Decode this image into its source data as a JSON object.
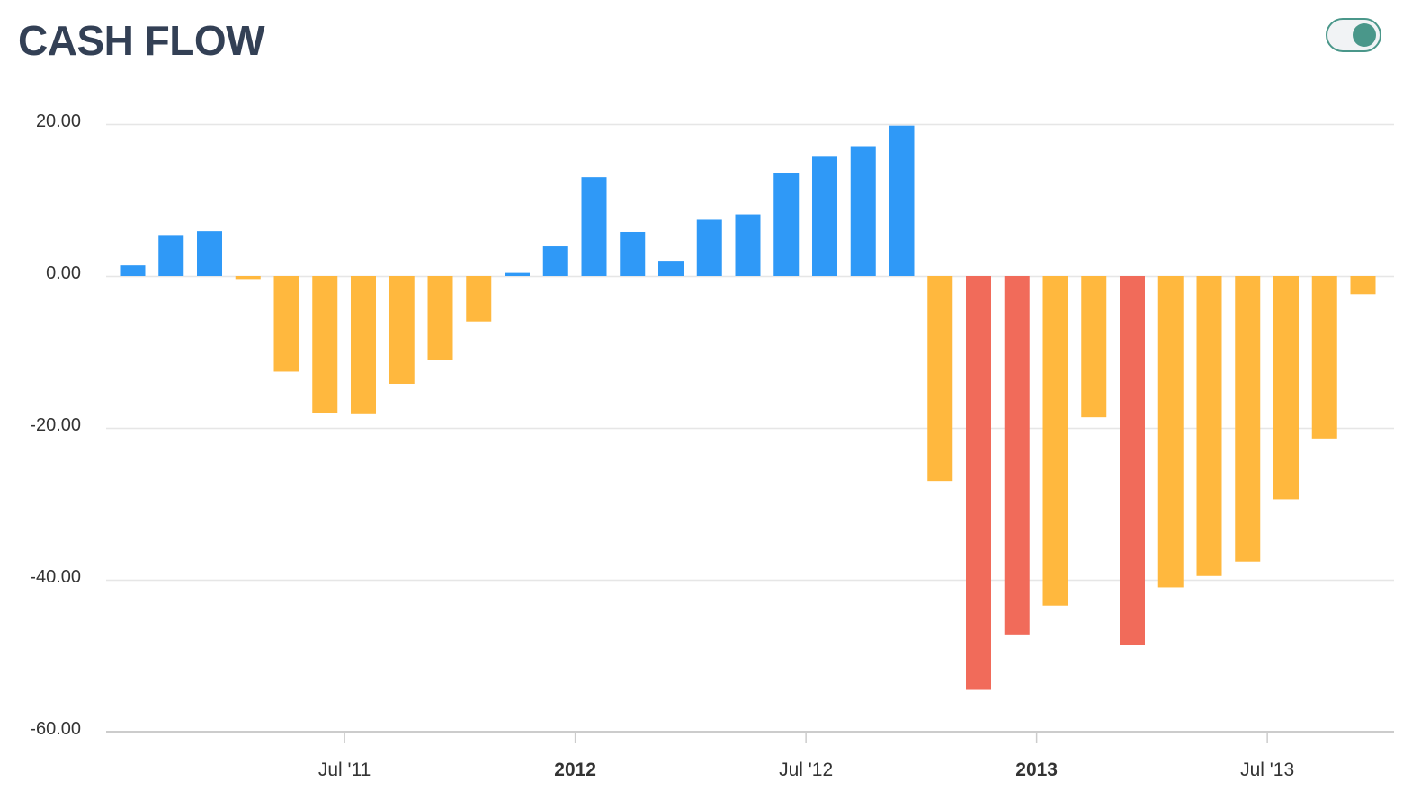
{
  "header": {
    "title": "CASH FLOW",
    "toggle_on": true
  },
  "colors": {
    "positive": "#2f99f7",
    "negative": "#ffb83e",
    "severe": "#f16b5a",
    "grid": "#e6e6e6",
    "axis": "#cccccc",
    "toggle": "#4a978a"
  },
  "chart_data": {
    "type": "bar",
    "title": "CASH FLOW",
    "xlabel": "",
    "ylabel": "",
    "ylim": [
      -60,
      20
    ],
    "yticks": [
      {
        "value": 20,
        "label": "20.00"
      },
      {
        "value": 0,
        "label": "0.00"
      },
      {
        "value": -20,
        "label": "-20.00"
      },
      {
        "value": -40,
        "label": "-40.00"
      },
      {
        "value": -60,
        "label": "-60.00"
      }
    ],
    "xticks": [
      {
        "date": "2011-07",
        "label": "Jul '11",
        "major": false
      },
      {
        "date": "2012-01",
        "label": "2012",
        "major": true
      },
      {
        "date": "2012-07",
        "label": "Jul '12",
        "major": false
      },
      {
        "date": "2013-01",
        "label": "2013",
        "major": true
      },
      {
        "date": "2013-07",
        "label": "Jul '13",
        "major": false
      }
    ],
    "grid": true,
    "legend": "none",
    "series": [
      {
        "points": [
          {
            "date": "2011-01",
            "value": 1.4,
            "level": "positive"
          },
          {
            "date": "2011-02",
            "value": 5.4,
            "level": "positive"
          },
          {
            "date": "2011-03",
            "value": 5.9,
            "level": "positive"
          },
          {
            "date": "2011-04",
            "value": -0.4,
            "level": "negative"
          },
          {
            "date": "2011-05",
            "value": -12.6,
            "level": "negative"
          },
          {
            "date": "2011-06",
            "value": -18.1,
            "level": "negative"
          },
          {
            "date": "2011-07",
            "value": -18.2,
            "level": "negative"
          },
          {
            "date": "2011-08",
            "value": -14.2,
            "level": "negative"
          },
          {
            "date": "2011-09",
            "value": -11.1,
            "level": "negative"
          },
          {
            "date": "2011-10",
            "value": -6.0,
            "level": "negative"
          },
          {
            "date": "2011-11",
            "value": 0.4,
            "level": "positive"
          },
          {
            "date": "2011-12",
            "value": 3.9,
            "level": "positive"
          },
          {
            "date": "2012-01",
            "value": 13.0,
            "level": "positive"
          },
          {
            "date": "2012-02",
            "value": 5.8,
            "level": "positive"
          },
          {
            "date": "2012-03",
            "value": 2.0,
            "level": "positive"
          },
          {
            "date": "2012-04",
            "value": 7.4,
            "level": "positive"
          },
          {
            "date": "2012-05",
            "value": 8.1,
            "level": "positive"
          },
          {
            "date": "2012-06",
            "value": 13.6,
            "level": "positive"
          },
          {
            "date": "2012-07",
            "value": 15.7,
            "level": "positive"
          },
          {
            "date": "2012-08",
            "value": 17.1,
            "level": "positive"
          },
          {
            "date": "2012-09",
            "value": 19.8,
            "level": "positive"
          },
          {
            "date": "2012-10",
            "value": -27.0,
            "level": "negative"
          },
          {
            "date": "2012-11",
            "value": -54.5,
            "level": "severe"
          },
          {
            "date": "2012-12",
            "value": -47.2,
            "level": "severe"
          },
          {
            "date": "2013-01",
            "value": -43.4,
            "level": "negative"
          },
          {
            "date": "2013-02",
            "value": -18.6,
            "level": "negative"
          },
          {
            "date": "2013-03",
            "value": -48.6,
            "level": "severe"
          },
          {
            "date": "2013-04",
            "value": -41.0,
            "level": "negative"
          },
          {
            "date": "2013-05",
            "value": -39.5,
            "level": "negative"
          },
          {
            "date": "2013-06",
            "value": -37.6,
            "level": "negative"
          },
          {
            "date": "2013-07",
            "value": -29.4,
            "level": "negative"
          },
          {
            "date": "2013-08",
            "value": -21.4,
            "level": "negative"
          },
          {
            "date": "2013-09",
            "value": -2.4,
            "level": "negative"
          }
        ]
      }
    ]
  }
}
